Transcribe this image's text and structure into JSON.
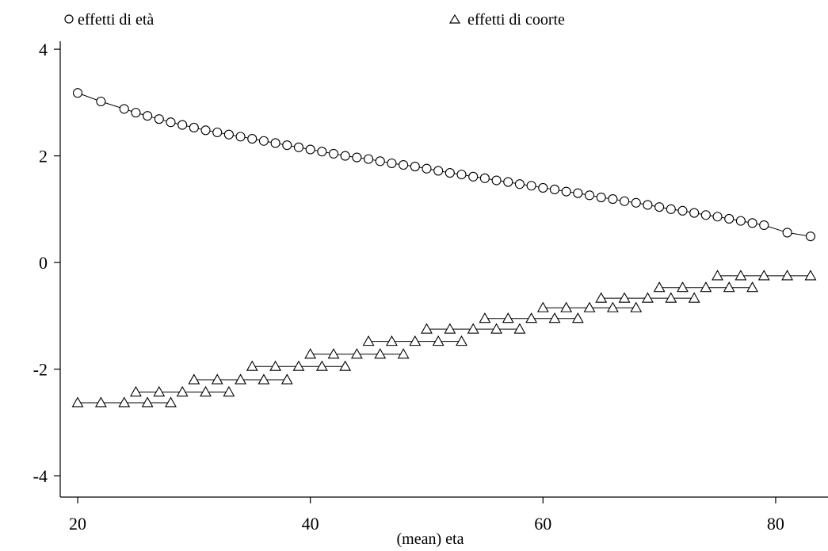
{
  "chart_data": {
    "type": "scatter",
    "xlabel": "(mean) eta",
    "ylabel": "",
    "xlim": [
      18.5,
      84.5
    ],
    "ylim": [
      -4.4,
      4.15
    ],
    "xticks": [
      20,
      40,
      60,
      80
    ],
    "yticks": [
      4,
      2,
      0,
      -2,
      -4
    ],
    "grid": false,
    "legend_position": "top",
    "series": [
      {
        "name": "effetti di età",
        "marker": "circle",
        "connected": true,
        "x": [
          20,
          22,
          24,
          25,
          26,
          27,
          28,
          29,
          30,
          31,
          32,
          33,
          34,
          35,
          36,
          37,
          38,
          39,
          40,
          41,
          42,
          43,
          44,
          45,
          46,
          47,
          48,
          49,
          50,
          51,
          52,
          53,
          54,
          55,
          56,
          57,
          58,
          59,
          60,
          61,
          62,
          63,
          64,
          65,
          66,
          67,
          68,
          69,
          70,
          71,
          72,
          73,
          74,
          75,
          76,
          77,
          78,
          79,
          81,
          83
        ],
        "y": [
          3.18,
          3.02,
          2.88,
          2.81,
          2.75,
          2.69,
          2.63,
          2.58,
          2.53,
          2.48,
          2.44,
          2.4,
          2.36,
          2.32,
          2.28,
          2.24,
          2.2,
          2.16,
          2.12,
          2.08,
          2.04,
          2.0,
          1.97,
          1.94,
          1.9,
          1.86,
          1.83,
          1.8,
          1.76,
          1.72,
          1.68,
          1.65,
          1.61,
          1.58,
          1.54,
          1.51,
          1.47,
          1.44,
          1.4,
          1.37,
          1.33,
          1.3,
          1.26,
          1.22,
          1.19,
          1.15,
          1.12,
          1.08,
          1.04,
          1.0,
          0.97,
          0.93,
          0.89,
          0.86,
          0.82,
          0.78,
          0.74,
          0.7,
          0.56,
          0.49
        ]
      },
      {
        "name": "effetti di coorte",
        "marker": "triangle",
        "connected": "step-segments",
        "x": [
          20,
          22,
          24,
          25,
          26,
          27,
          28,
          29,
          30,
          31,
          32,
          33,
          34,
          35,
          36,
          37,
          38,
          39,
          40,
          41,
          42,
          43,
          44,
          45,
          46,
          47,
          48,
          49,
          50,
          51,
          52,
          53,
          54,
          55,
          56,
          57,
          58,
          59,
          60,
          61,
          62,
          63,
          64,
          65,
          66,
          67,
          68,
          69,
          70,
          71,
          72,
          73,
          74,
          75,
          76,
          77,
          78,
          79,
          81,
          83
        ],
        "y": [
          -2.63,
          -2.63,
          -2.63,
          -2.43,
          -2.63,
          -2.43,
          -2.63,
          -2.43,
          -2.2,
          -2.43,
          -2.2,
          -2.43,
          -2.2,
          -1.95,
          -2.2,
          -1.95,
          -2.2,
          -1.95,
          -1.72,
          -1.95,
          -1.72,
          -1.95,
          -1.72,
          -1.48,
          -1.72,
          -1.48,
          -1.72,
          -1.48,
          -1.25,
          -1.48,
          -1.25,
          -1.48,
          -1.25,
          -1.05,
          -1.25,
          -1.05,
          -1.25,
          -1.05,
          -0.85,
          -1.05,
          -0.85,
          -1.05,
          -0.85,
          -0.67,
          -0.85,
          -0.67,
          -0.85,
          -0.67,
          -0.47,
          -0.67,
          -0.47,
          -0.67,
          -0.47,
          -0.25,
          -0.47,
          -0.25,
          -0.47,
          -0.25,
          -0.25,
          -0.25
        ],
        "segments": [
          [
            20,
            28,
            -2.63
          ],
          [
            25,
            33,
            -2.43
          ],
          [
            30,
            38,
            -2.2
          ],
          [
            35,
            43,
            -1.95
          ],
          [
            40,
            48,
            -1.72
          ],
          [
            45,
            53,
            -1.48
          ],
          [
            50,
            58,
            -1.25
          ],
          [
            55,
            63,
            -1.05
          ],
          [
            60,
            68,
            -0.85
          ],
          [
            65,
            73,
            -0.67
          ],
          [
            70,
            78,
            -0.47
          ],
          [
            75,
            83,
            -0.25
          ]
        ]
      }
    ]
  },
  "legend": {
    "age_label": "effetti di età",
    "cohort_label": "effetti di coorte"
  }
}
